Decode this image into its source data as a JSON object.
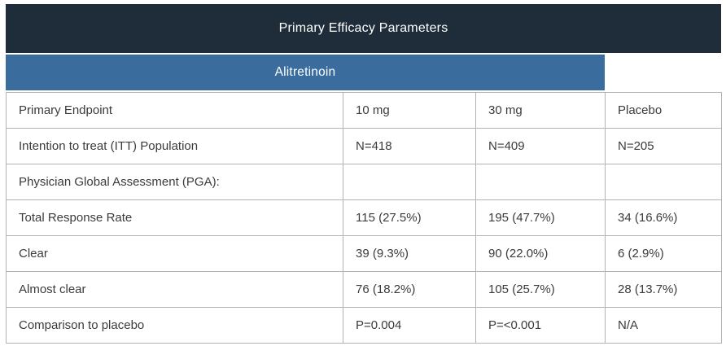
{
  "colors": {
    "title_bar_bg": "#1f2d3b",
    "group_header_bg": "#3a6d9e",
    "border": "#b3b3b3",
    "body_text": "#3b3b3b",
    "header_text": "#ffffff"
  },
  "table": {
    "title": "Primary Efficacy Parameters",
    "group_header": "Alitretinoin",
    "header_row": [
      "Primary Endpoint",
      "10 mg",
      "30 mg",
      "Placebo"
    ],
    "rows": [
      [
        "Intention to treat (ITT) Population",
        "N=418",
        "N=409",
        "N=205"
      ],
      [
        "Physician Global Assessment (PGA):",
        "",
        "",
        ""
      ],
      [
        "Total Response Rate",
        "115 (27.5%)",
        "195 (47.7%)",
        "34 (16.6%)"
      ],
      [
        "Clear",
        "39 (9.3%)",
        "90 (22.0%)",
        "6 (2.9%)"
      ],
      [
        "Almost clear",
        "76 (18.2%)",
        "105 (25.7%)",
        "28 (13.7%)"
      ],
      [
        "Comparison to placebo",
        "P=0.004",
        "P=<0.001",
        "N/A"
      ]
    ]
  }
}
